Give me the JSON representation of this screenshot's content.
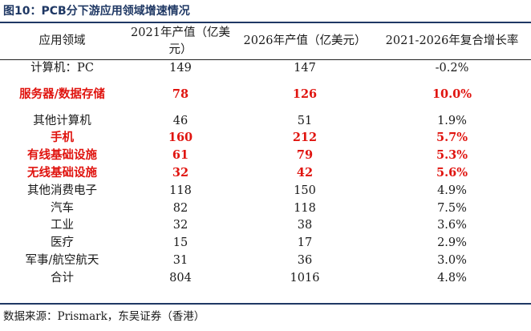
{
  "figure_title": "图10：PCB分下游应用领域增速情况",
  "headers": [
    "应用领域",
    "2021年产值（亿美元）",
    "2026年产值（亿美元）",
    "2021-2026年复合增长率"
  ],
  "rows": [
    {
      "field": "计算机：PC",
      "v2021": "149",
      "v2026": "147",
      "cagr": "-0.2%"
    },
    {
      "field": "服务器/数据存储",
      "v2021": "78",
      "v2026": "126",
      "cagr": "10.0%"
    },
    {
      "field": "其他计算机",
      "v2021": "46",
      "v2026": "51",
      "cagr": "1.9%"
    },
    {
      "field": "手机",
      "v2021": "160",
      "v2026": "212",
      "cagr": "5.7%"
    },
    {
      "field": "有线基础设施",
      "v2021": "61",
      "v2026": "79",
      "cagr": "5.3%"
    },
    {
      "field": "无线基础设施",
      "v2021": "32",
      "v2026": "42",
      "cagr": "5.6%"
    },
    {
      "field": "其他消费电子",
      "v2021": "118",
      "v2026": "150",
      "cagr": "4.9%"
    },
    {
      "field": "汽车",
      "v2021": "82",
      "v2026": "118",
      "cagr": "7.5%"
    },
    {
      "field": "工业",
      "v2021": "32",
      "v2026": "38",
      "cagr": "3.6%"
    },
    {
      "field": "医疗",
      "v2021": "15",
      "v2026": "17",
      "cagr": "2.9%"
    },
    {
      "field": "军事/航空航天",
      "v2021": "31",
      "v2026": "36",
      "cagr": "3.0%"
    },
    {
      "field": "合计",
      "v2021": "804",
      "v2026": "1016",
      "cagr": "4.8%"
    }
  ],
  "source": "数据来源：Prismark，东吴证券（香港）",
  "colors": {
    "title": "#1f3864",
    "highlight": "#e0140f"
  }
}
